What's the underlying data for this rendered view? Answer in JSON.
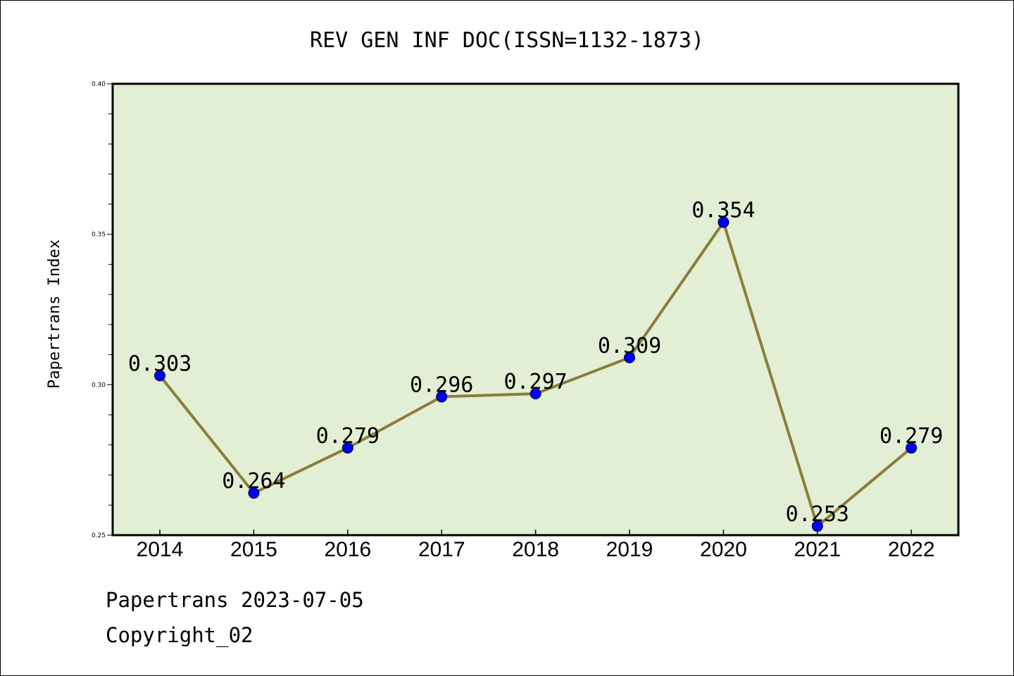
{
  "chart_data": {
    "type": "line",
    "title": "REV GEN INF DOC(ISSN=1132-1873)",
    "ylabel": "Papertrans Index",
    "xlabel": "",
    "categories": [
      "2014",
      "2015",
      "2016",
      "2017",
      "2018",
      "2019",
      "2020",
      "2021",
      "2022"
    ],
    "values": [
      0.303,
      0.264,
      0.279,
      0.296,
      0.297,
      0.309,
      0.354,
      0.253,
      0.279
    ],
    "data_labels": [
      "0.303",
      "0.264",
      "0.279",
      "0.296",
      "0.297",
      "0.309",
      "0.354",
      "0.253",
      "0.279"
    ],
    "ylim": [
      0.25,
      0.4
    ],
    "yticks": [
      "0.25",
      "0.30",
      "0.35",
      "0.40"
    ],
    "yticks_values": [
      0.25,
      0.3,
      0.35,
      0.4
    ],
    "yminor_step": 0.01,
    "grid": false,
    "colors": {
      "plot_background": "#e2efd5",
      "line": "#8b7d3a",
      "marker": "#0000ff"
    }
  },
  "footer": {
    "line1": "Papertrans 2023-07-05",
    "line2": "Copyright_02"
  }
}
